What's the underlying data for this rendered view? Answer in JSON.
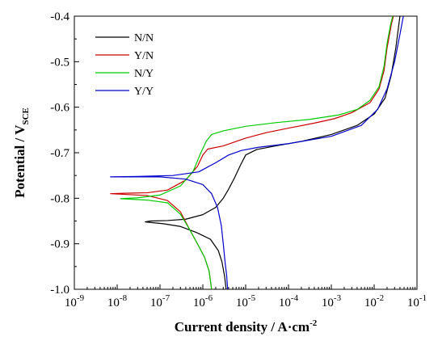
{
  "chart_data": {
    "type": "line",
    "title": "",
    "xlabel": {
      "main": "Current density / A·cm",
      "sup": "-2"
    },
    "ylabel": {
      "main": "Potential / V",
      "sub": "SCE"
    },
    "x_scale": "log",
    "xlim": [
      1e-09,
      0.1
    ],
    "ylim": [
      -1.0,
      -0.4
    ],
    "x_ticks": [
      {
        "value": 1e-09,
        "base": "10",
        "exp": "-9"
      },
      {
        "value": 1e-08,
        "base": "10",
        "exp": "-8"
      },
      {
        "value": 1e-07,
        "base": "10",
        "exp": "-7"
      },
      {
        "value": 1e-06,
        "base": "10",
        "exp": "-6"
      },
      {
        "value": 1e-05,
        "base": "10",
        "exp": "-5"
      },
      {
        "value": 0.0001,
        "base": "10",
        "exp": "-4"
      },
      {
        "value": 0.001,
        "base": "10",
        "exp": "-3"
      },
      {
        "value": 0.01,
        "base": "10",
        "exp": "-2"
      },
      {
        "value": 0.1,
        "base": "10",
        "exp": "-1"
      }
    ],
    "y_ticks": [
      {
        "value": -1.0,
        "label": "-1.0"
      },
      {
        "value": -0.9,
        "label": "-0.9"
      },
      {
        "value": -0.8,
        "label": "-0.8"
      },
      {
        "value": -0.7,
        "label": "-0.7"
      },
      {
        "value": -0.6,
        "label": "-0.6"
      },
      {
        "value": -0.5,
        "label": "-0.5"
      },
      {
        "value": -0.4,
        "label": "-0.4"
      }
    ],
    "grid": false,
    "legend_position": "top-left",
    "series": [
      {
        "name": "N/N",
        "color": "#000000",
        "values": [
          [
            3.5e-06,
            -1.0
          ],
          [
            3.2e-06,
            -0.97
          ],
          [
            2.8e-06,
            -0.94
          ],
          [
            2.3e-06,
            -0.915
          ],
          [
            1.5e-06,
            -0.89
          ],
          [
            7e-07,
            -0.875
          ],
          [
            3e-07,
            -0.862
          ],
          [
            1.2e-07,
            -0.856
          ],
          [
            4.5e-08,
            -0.852
          ],
          [
            6e-08,
            -0.85
          ],
          [
            1.5e-07,
            -0.849
          ],
          [
            4e-07,
            -0.846
          ],
          [
            1e-06,
            -0.836
          ],
          [
            2e-06,
            -0.82
          ],
          [
            3e-06,
            -0.8
          ],
          [
            4e-06,
            -0.78
          ],
          [
            5.5e-06,
            -0.755
          ],
          [
            7.5e-06,
            -0.728
          ],
          [
            1e-05,
            -0.705
          ],
          [
            1.8e-05,
            -0.693
          ],
          [
            5e-05,
            -0.685
          ],
          [
            0.0002,
            -0.675
          ],
          [
            0.001,
            -0.66
          ],
          [
            0.004,
            -0.64
          ],
          [
            0.01,
            -0.615
          ],
          [
            0.018,
            -0.58
          ],
          [
            0.025,
            -0.53
          ],
          [
            0.032,
            -0.47
          ],
          [
            0.04,
            -0.4
          ]
        ]
      },
      {
        "name": "Y/N",
        "color": "#cc0000",
        "values": [
          [
            1.6e-06,
            -1.0
          ],
          [
            1.4e-06,
            -0.96
          ],
          [
            1.1e-06,
            -0.93
          ],
          [
            8e-07,
            -0.905
          ],
          [
            5e-07,
            -0.87
          ],
          [
            3e-07,
            -0.83
          ],
          [
            1.5e-07,
            -0.805
          ],
          [
            5e-08,
            -0.794
          ],
          [
            7e-09,
            -0.79
          ],
          [
            1.5e-08,
            -0.789
          ],
          [
            5e-08,
            -0.788
          ],
          [
            1.5e-07,
            -0.782
          ],
          [
            4e-07,
            -0.76
          ],
          [
            7.5e-07,
            -0.73
          ],
          [
            1e-06,
            -0.705
          ],
          [
            1.3e-06,
            -0.692
          ],
          [
            3e-06,
            -0.685
          ],
          [
            1e-05,
            -0.668
          ],
          [
            3e-05,
            -0.656
          ],
          [
            0.0001,
            -0.646
          ],
          [
            0.0004,
            -0.635
          ],
          [
            0.0012,
            -0.625
          ],
          [
            0.003,
            -0.612
          ],
          [
            0.008,
            -0.59
          ],
          [
            0.013,
            -0.56
          ],
          [
            0.017,
            -0.52
          ],
          [
            0.02,
            -0.47
          ],
          [
            0.025,
            -0.42
          ],
          [
            0.028,
            -0.4
          ]
        ]
      },
      {
        "name": "N/Y",
        "color": "#00cc00",
        "values": [
          [
            1.6e-06,
            -1.0
          ],
          [
            1.4e-06,
            -0.96
          ],
          [
            1.1e-06,
            -0.93
          ],
          [
            8e-07,
            -0.905
          ],
          [
            5e-07,
            -0.87
          ],
          [
            3e-07,
            -0.835
          ],
          [
            1.5e-07,
            -0.81
          ],
          [
            5e-08,
            -0.804
          ],
          [
            1.2e-08,
            -0.801
          ],
          [
            3e-08,
            -0.799
          ],
          [
            1e-07,
            -0.793
          ],
          [
            3e-07,
            -0.773
          ],
          [
            6e-07,
            -0.74
          ],
          [
            9e-07,
            -0.7
          ],
          [
            1.2e-06,
            -0.675
          ],
          [
            1.6e-06,
            -0.66
          ],
          [
            3e-06,
            -0.652
          ],
          [
            1e-05,
            -0.642
          ],
          [
            5e-05,
            -0.634
          ],
          [
            0.0003,
            -0.627
          ],
          [
            0.0015,
            -0.617
          ],
          [
            0.004,
            -0.605
          ],
          [
            0.008,
            -0.585
          ],
          [
            0.013,
            -0.555
          ],
          [
            0.017,
            -0.51
          ],
          [
            0.02,
            -0.46
          ],
          [
            0.024,
            -0.42
          ],
          [
            0.027,
            -0.4
          ]
        ]
      },
      {
        "name": "Y/Y",
        "color": "#0000cc",
        "values": [
          [
            3.8e-06,
            -1.0
          ],
          [
            3.6e-06,
            -0.97
          ],
          [
            3.3e-06,
            -0.94
          ],
          [
            3e-06,
            -0.9
          ],
          [
            2.7e-06,
            -0.86
          ],
          [
            2.2e-06,
            -0.82
          ],
          [
            1.6e-06,
            -0.79
          ],
          [
            1e-06,
            -0.77
          ],
          [
            4e-07,
            -0.758
          ],
          [
            1e-07,
            -0.753
          ],
          [
            7e-09,
            -0.753
          ],
          [
            3e-08,
            -0.752
          ],
          [
            2e-07,
            -0.75
          ],
          [
            8e-07,
            -0.742
          ],
          [
            2e-06,
            -0.722
          ],
          [
            4e-06,
            -0.705
          ],
          [
            8e-06,
            -0.695
          ],
          [
            2e-05,
            -0.688
          ],
          [
            0.0001,
            -0.68
          ],
          [
            0.001,
            -0.664
          ],
          [
            0.005,
            -0.64
          ],
          [
            0.012,
            -0.605
          ],
          [
            0.02,
            -0.56
          ],
          [
            0.03,
            -0.5
          ],
          [
            0.04,
            -0.44
          ],
          [
            0.048,
            -0.4
          ]
        ]
      }
    ]
  }
}
